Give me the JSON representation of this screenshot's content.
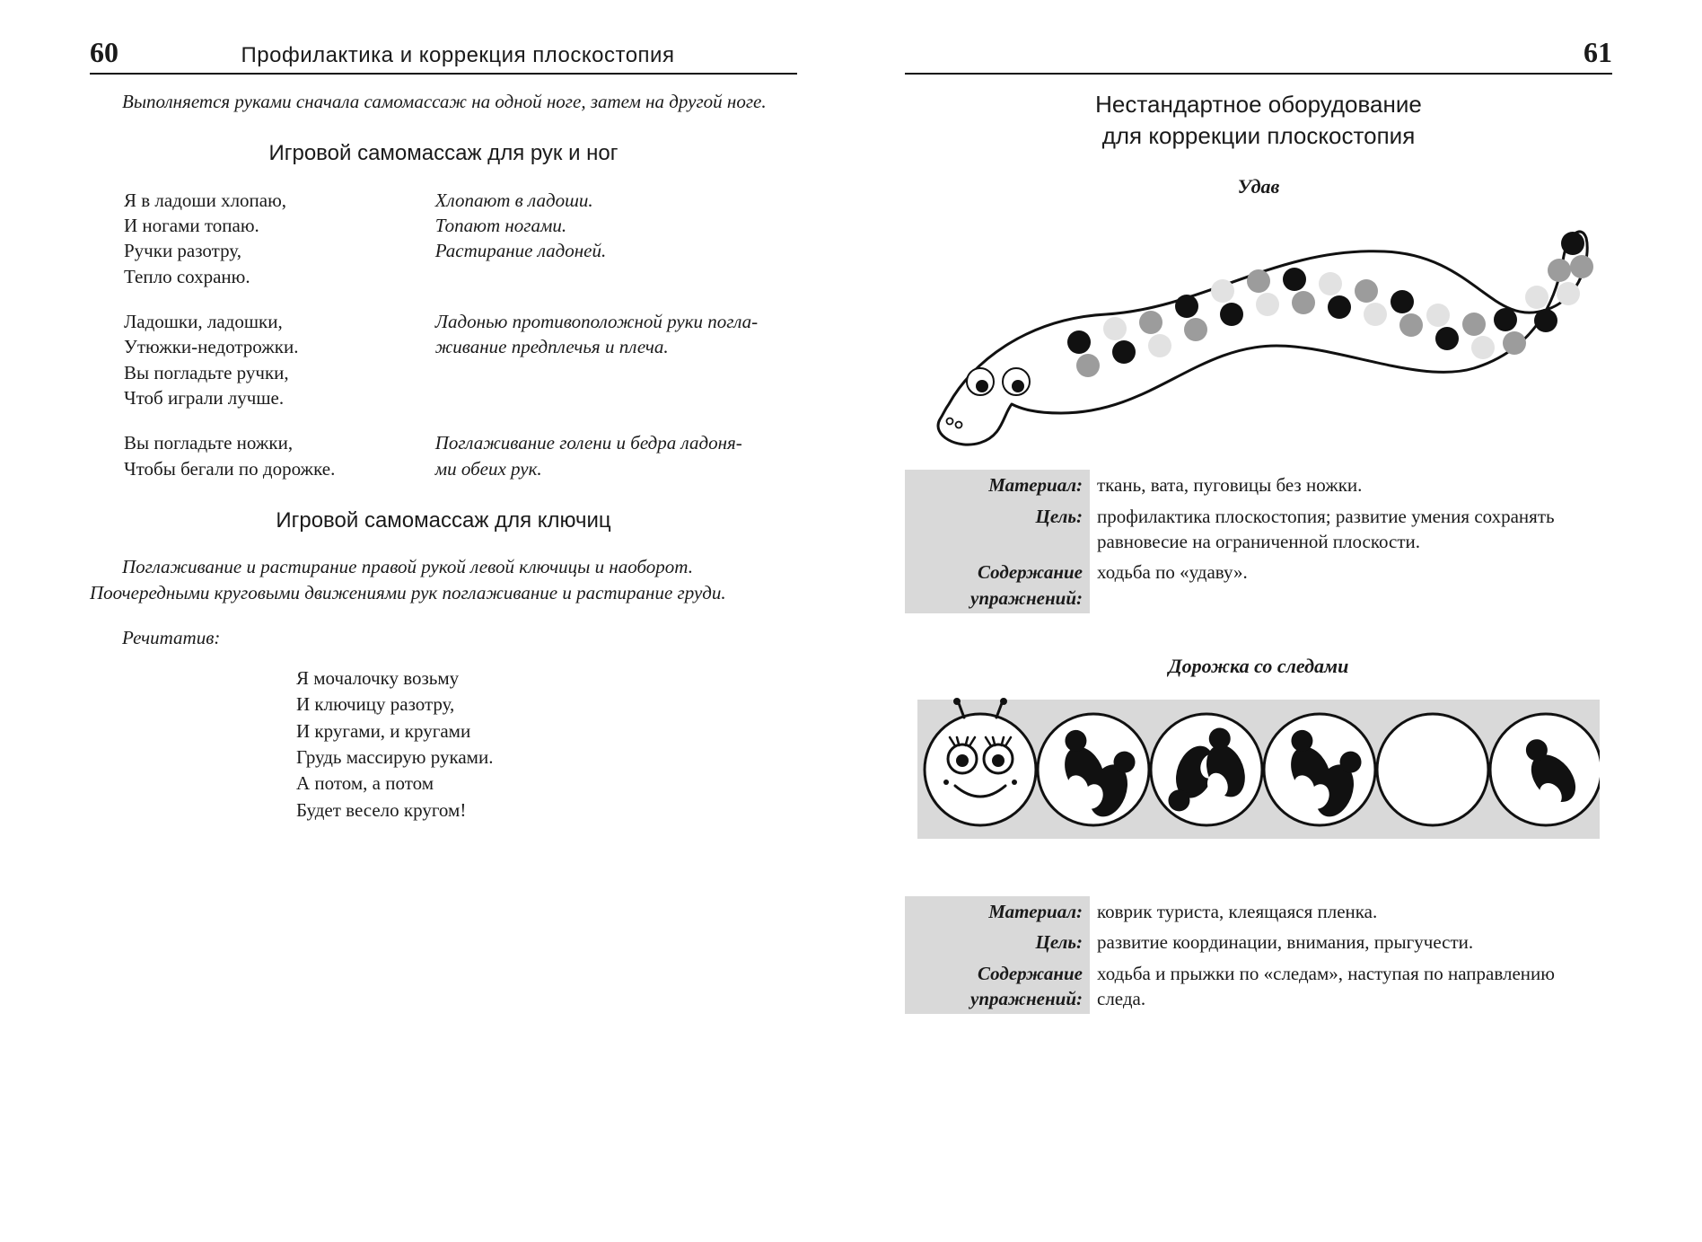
{
  "left": {
    "page_number": "60",
    "running_header": "Профилактика и коррекция плоскостопия",
    "intro_italic": "Выполняется руками сначала самомассаж на одной ноге, затем на другой ноге.",
    "title1": "Игровой самомассаж для рук и ног",
    "verse_blocks": [
      {
        "verse": [
          "Я в ладоши хлопаю,",
          "И ногами топаю.",
          "Ручки разотру,",
          "Тепло сохраню."
        ],
        "action": [
          "Хлопают в ладоши.",
          "Топают ногами.",
          "Растирание ладоней."
        ]
      },
      {
        "verse": [
          "Ладошки, ладошки,",
          "Утюжки-недотрожки.",
          "Вы погладьте ручки,",
          "Чтоб играли лучше."
        ],
        "action": [
          "Ладонью противоположной руки погла-",
          "живание предплечья и плеча."
        ]
      },
      {
        "verse": [
          "Вы погладьте ножки,",
          "Чтобы бегали по дорожке."
        ],
        "action": [
          "Поглаживание голени и бедра ладоня-",
          "ми обеих рук."
        ]
      }
    ],
    "title2": "Игровой самомассаж для ключиц",
    "para2": "Поглаживание и растирание правой рукой левой ключицы и наоборот. Поочередными круговыми движениями рук поглаживание и растирание груди.",
    "recit_label": "Речитатив:",
    "poem": [
      "Я мочалочку возьму",
      "И ключицу разотру,",
      "И кругами, и кругами",
      "Грудь массирую руками.",
      "А потом, а потом",
      "Будет весело кругом!"
    ]
  },
  "right": {
    "page_number": "61",
    "equip_title_line1": "Нестандартное оборудование",
    "equip_title_line2": "для коррекции плоскостопия",
    "item1": {
      "name": "Удав",
      "material_label": "Материал:",
      "material": "ткань, вата, пуговицы без ножки.",
      "goal_label": "Цель:",
      "goal": "профилактика плоскостопия; развитие умения сохранять равновесие на ограниченной плоскости.",
      "content_label_l1": "Содержание",
      "content_label_l2": "упражнений:",
      "content": "ходьба по «удаву»."
    },
    "item2": {
      "name": "Дорожка со следами",
      "material_label": "Материал:",
      "material": "коврик туриста, клеящаяся пленка.",
      "goal_label": "Цель:",
      "goal": "развитие координации, внимания, прыгучести.",
      "content_label_l1": "Содержание",
      "content_label_l2": "упражнений:",
      "content": "ходьба и прыжки по «следам», наступая по направлению следа."
    }
  },
  "style": {
    "text_color": "#1a1a1a",
    "label_bg": "#d9d9d9",
    "rule_color": "#111111",
    "body_font_pt": 16,
    "title_font_pt": 18,
    "snake": {
      "stroke": "#111111",
      "dot_colors": [
        "#111111",
        "#9c9c9c",
        "#e2e2e2"
      ],
      "background": "#ffffff"
    },
    "track": {
      "strip_bg": "#d9d9d9",
      "circle_fill": "#ffffff",
      "circle_stroke": "#111111",
      "foot_fill": "#111111"
    }
  }
}
